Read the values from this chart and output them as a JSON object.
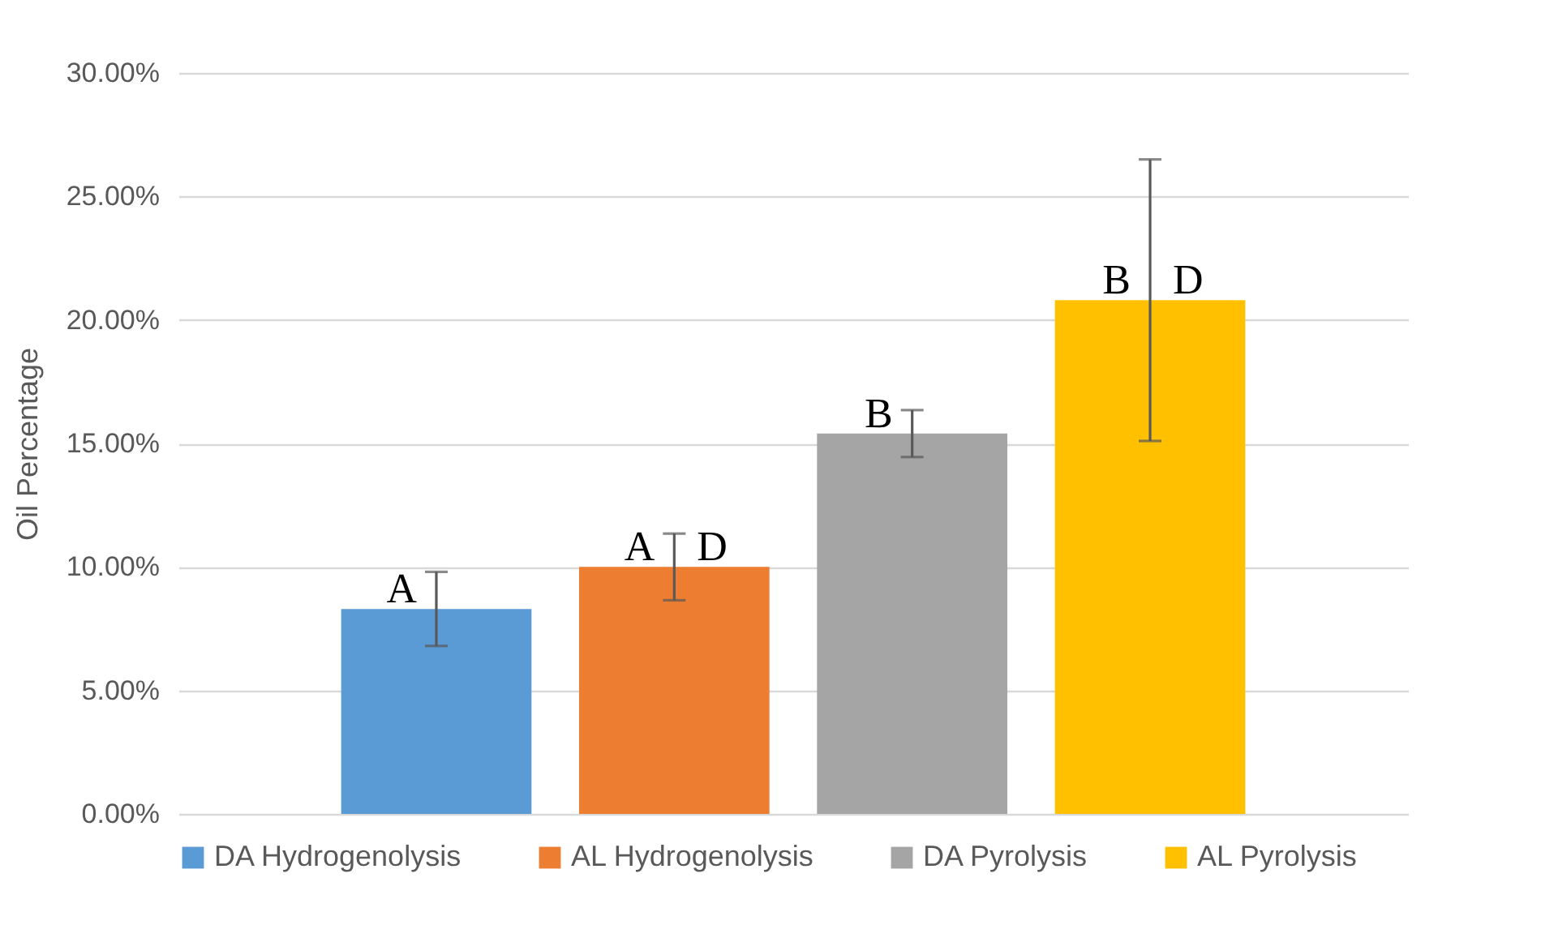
{
  "chart_data": {
    "type": "bar",
    "ylabel": "Oil Percentage",
    "categories": [
      null
    ],
    "ylim": [
      0,
      30
    ],
    "yticks": [
      {
        "value": 0,
        "label": "0.00%"
      },
      {
        "value": 5,
        "label": "5.00%"
      },
      {
        "value": 10,
        "label": "10.00%"
      },
      {
        "value": 15,
        "label": "15.00%"
      },
      {
        "value": 20,
        "label": "20.00%"
      },
      {
        "value": 25,
        "label": "25.00%"
      },
      {
        "value": 30,
        "label": "30.00%"
      }
    ],
    "grid": "y",
    "legend": "bottom",
    "series": [
      {
        "name": "DA Hydrogenolysis",
        "color": "#5b9bd5",
        "values": [
          8.3
        ],
        "errors": [
          1.5
        ],
        "value_labels": [
          "A"
        ]
      },
      {
        "name": "AL Hydrogenolysis",
        "color": "#ed7d31",
        "values": [
          10.0
        ],
        "errors": [
          1.35
        ],
        "value_labels": [
          "A D"
        ]
      },
      {
        "name": "DA Pyrolysis",
        "color": "#a5a5a5",
        "values": [
          15.4
        ],
        "errors": [
          0.95
        ],
        "value_labels": [
          "B"
        ]
      },
      {
        "name": "AL Pyrolysis",
        "color": "#ffc000",
        "values": [
          20.8
        ],
        "errors": [
          5.7
        ],
        "value_labels": [
          "B D"
        ]
      }
    ]
  }
}
